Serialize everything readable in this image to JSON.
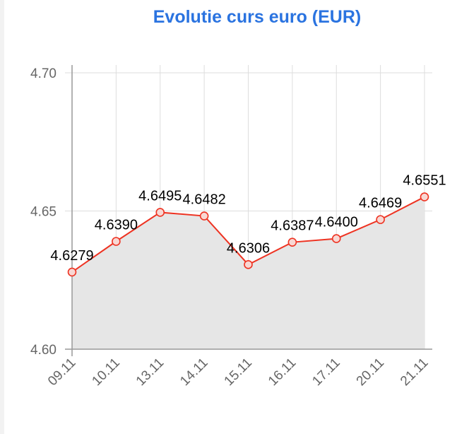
{
  "chart_data": {
    "type": "line",
    "title": "Evolutie curs euro (EUR)",
    "categories": [
      "09.11",
      "10.11",
      "13.11",
      "14.11",
      "15.11",
      "16.11",
      "17.11",
      "20.11",
      "21.11"
    ],
    "series": [
      {
        "values": [
          4.6279,
          4.639,
          4.6495,
          4.6482,
          4.6306,
          4.6387,
          4.64,
          4.6469,
          4.6551
        ],
        "labels": [
          "4.6279",
          "4.6390",
          "4.6495",
          "4.6482",
          "4.6306",
          "4.6387",
          "4.6400",
          "4.6469",
          "4.6551"
        ]
      }
    ],
    "yticks": [
      "4.60",
      "4.65",
      "4.70"
    ],
    "ylim": [
      4.6,
      4.7
    ],
    "grid": true,
    "fill": true,
    "colors": {
      "line": "#ee3322",
      "fill": "#e6e6e6",
      "grid": "#dddddd",
      "title": "#2a73e0"
    }
  }
}
